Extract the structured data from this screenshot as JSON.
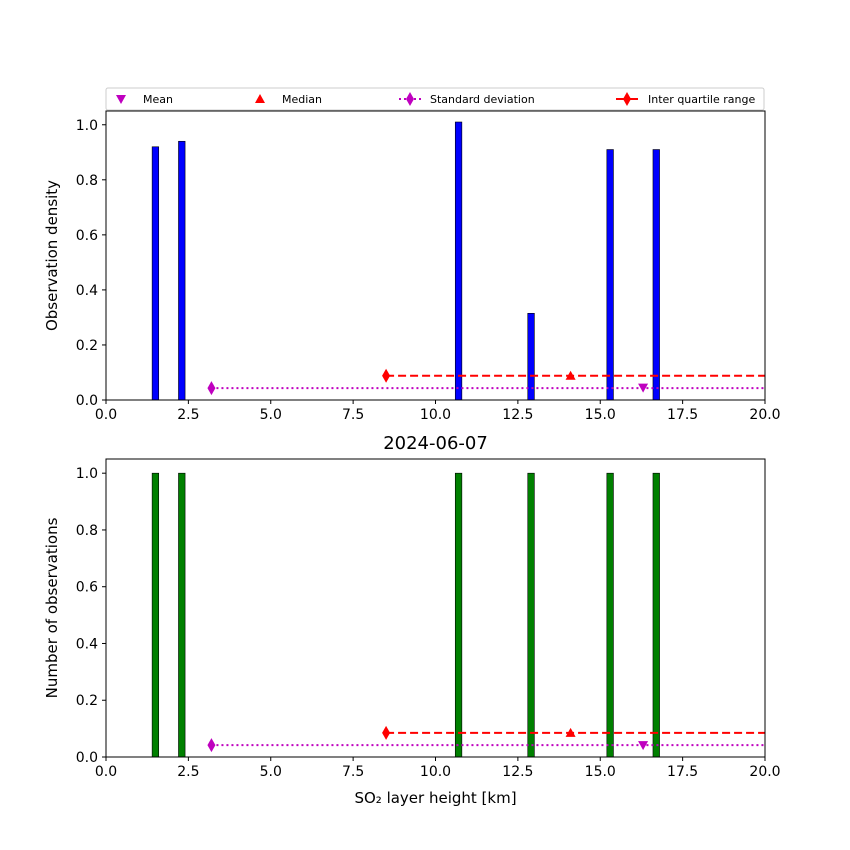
{
  "legend": {
    "mean": "Mean",
    "median": "Median",
    "std": "Standard deviation",
    "iqr": "Inter quartile range"
  },
  "colors": {
    "top_bars": "#0000ff",
    "bottom_bars": "#008000",
    "mean": "#bf00bf",
    "median": "#ff0000",
    "std": "#bf00bf",
    "iqr": "#ff0000"
  },
  "chart_data": [
    {
      "type": "bar",
      "title": "",
      "xlabel": "",
      "ylabel": "Observation density",
      "xlim": [
        0,
        20
      ],
      "ylim": [
        0,
        1.05
      ],
      "xticks": [
        "0.0",
        "2.5",
        "5.0",
        "7.5",
        "10.0",
        "12.5",
        "15.0",
        "17.5",
        "20.0"
      ],
      "yticks": [
        "0.0",
        "0.2",
        "0.4",
        "0.6",
        "0.8",
        "1.0"
      ],
      "bar_width": 0.2,
      "x": [
        1.5,
        2.3,
        10.7,
        12.9,
        15.3,
        16.7
      ],
      "values": [
        0.92,
        0.94,
        1.01,
        0.315,
        0.91,
        0.91
      ],
      "stats": {
        "mean": {
          "x": 16.3,
          "y": 0.045
        },
        "median": {
          "x": 14.1,
          "y": 0.088
        },
        "std": {
          "x_start": 3.2,
          "x_end": 20,
          "y": 0.043
        },
        "iqr": {
          "x_start": 8.5,
          "x_end": 20,
          "y": 0.088
        }
      }
    },
    {
      "type": "bar",
      "title": "2024-06-07",
      "xlabel": "SO₂ layer height [km]",
      "ylabel": "Number of observations",
      "xlim": [
        0,
        20
      ],
      "ylim": [
        0,
        1.05
      ],
      "xticks": [
        "0.0",
        "2.5",
        "5.0",
        "7.5",
        "10.0",
        "12.5",
        "15.0",
        "17.5",
        "20.0"
      ],
      "yticks": [
        "0.0",
        "0.2",
        "0.4",
        "0.6",
        "0.8",
        "1.0"
      ],
      "bar_width": 0.2,
      "x": [
        1.5,
        2.3,
        10.7,
        12.9,
        15.3,
        16.7
      ],
      "values": [
        1,
        1,
        1,
        1,
        1,
        1
      ],
      "stats": {
        "mean": {
          "x": 16.3,
          "y": 0.042
        },
        "median": {
          "x": 14.1,
          "y": 0.085
        },
        "std": {
          "x_start": 3.2,
          "x_end": 20,
          "y": 0.042
        },
        "iqr": {
          "x_start": 8.5,
          "x_end": 20,
          "y": 0.085
        }
      }
    }
  ]
}
